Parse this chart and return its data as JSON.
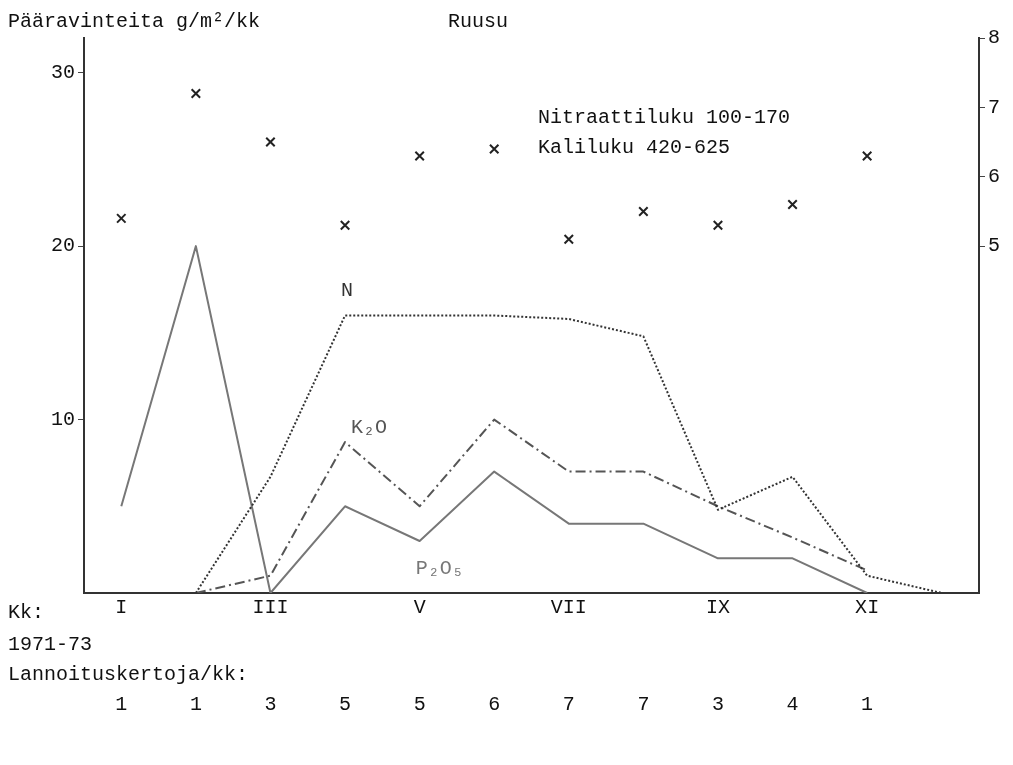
{
  "chart_data": {
    "type": "line",
    "title": "Ruusu",
    "ylabel": "Pääravinteita g/m²/kk",
    "xlabel": "Kk:",
    "categories": [
      "I",
      null,
      "III",
      null,
      "V",
      null,
      "VII",
      null,
      "IX",
      null,
      "XI",
      null
    ],
    "series": [
      {
        "name": "N",
        "line_style": "dotted",
        "color": "#333333",
        "values": [
          null,
          0,
          6.7,
          16,
          16,
          16,
          15.8,
          14.8,
          4.8,
          6.7,
          1,
          0
        ]
      },
      {
        "name": "K₂O",
        "line_style": "dashed",
        "color": "#555555",
        "values": [
          null,
          0,
          1,
          8.7,
          5,
          10,
          7,
          7,
          5,
          3.2,
          1.3,
          null
        ]
      },
      {
        "name": "P₂O₅",
        "line_style": "solid",
        "color": "#777777",
        "values": [
          5,
          20,
          0,
          5,
          3,
          7,
          4,
          4,
          2,
          2,
          0,
          null
        ]
      },
      {
        "type": "scatter",
        "axis": "y2",
        "marker": "cross",
        "color": "#222222",
        "values": [
          5.4,
          7.2,
          6.5,
          5.3,
          6.3,
          6.4,
          5.1,
          5.5,
          5.3,
          5.6,
          6.3,
          null
        ]
      }
    ],
    "ylim": [
      0,
      32
    ],
    "yticks": [
      10,
      20,
      30
    ],
    "y2lim": [
      0,
      8
    ],
    "y2ticks": [
      5,
      6,
      7,
      8
    ],
    "grid": false,
    "legend": false,
    "annotations": [
      "Nitraattiluku 100-170",
      "Kaliluku 420-625",
      "1971-73",
      "Lannoituskertoja/kk:",
      "1 1 3 5 5 6 7 7 3 4 1"
    ]
  }
}
